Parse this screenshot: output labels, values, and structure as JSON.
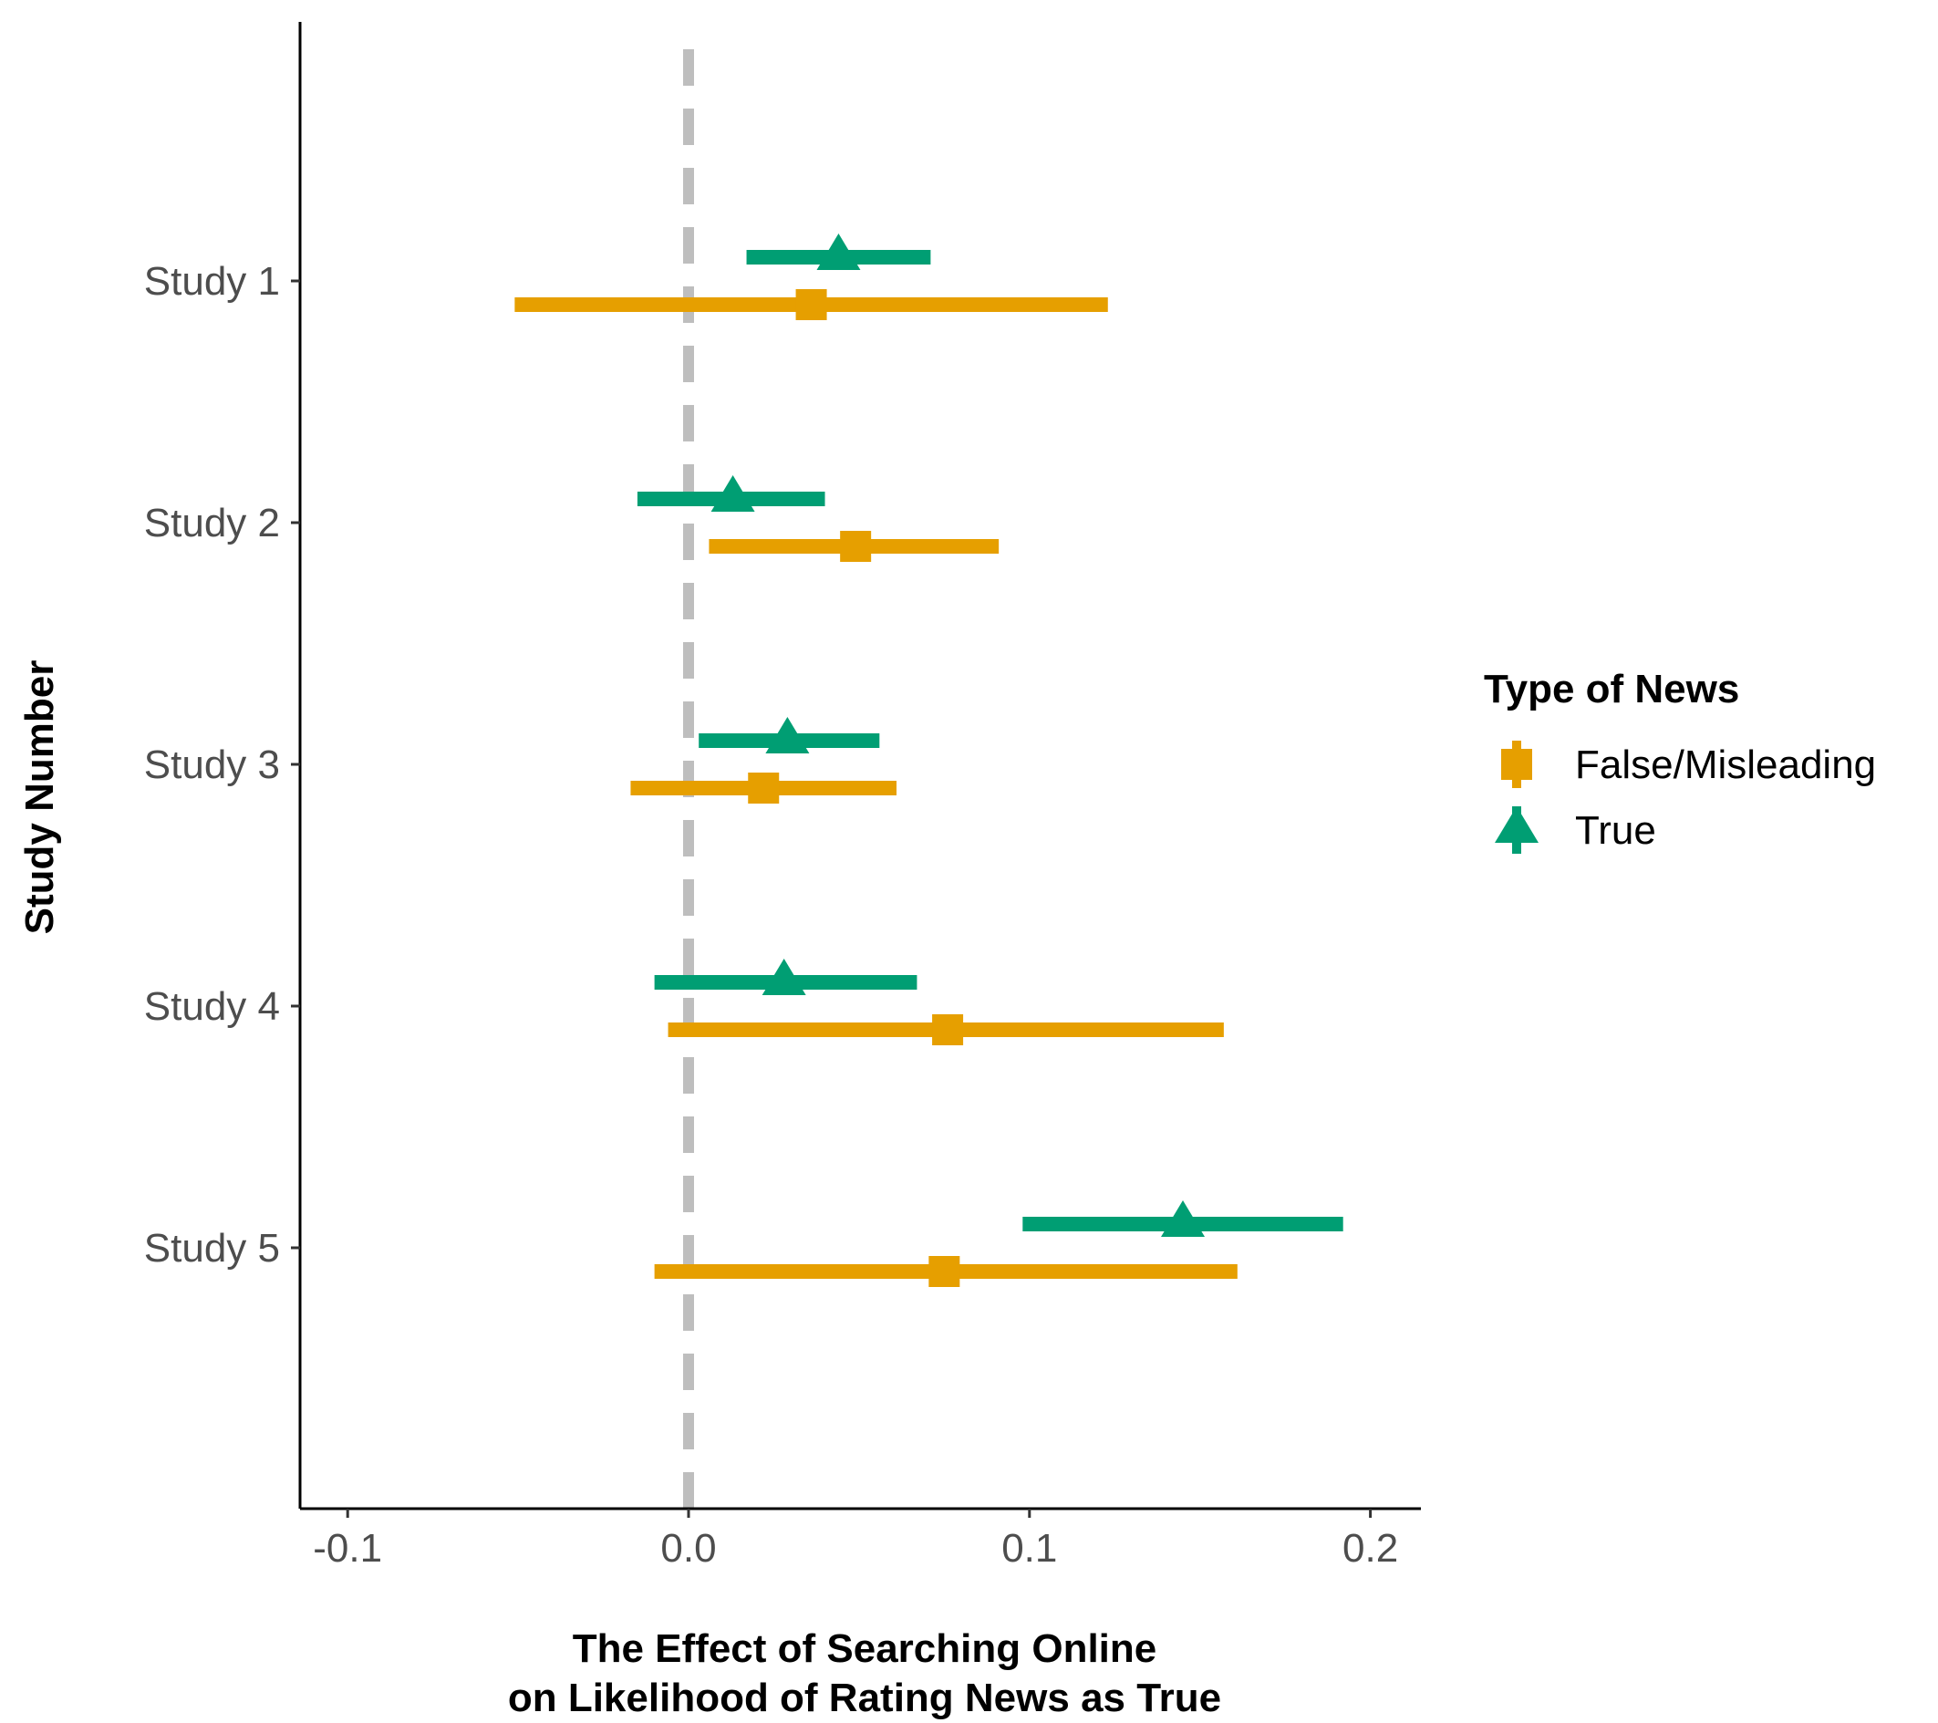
{
  "chart_data": {
    "type": "scatter",
    "subtype": "forest-plot-with-confidence-intervals",
    "title": "",
    "xlabel_lines": [
      "The Effect of Searching Online",
      "on Likelihood of Rating News as True"
    ],
    "ylabel": "Study Number",
    "categories": [
      "Study 1",
      "Study 2",
      "Study 3",
      "Study 4",
      "Study 5"
    ],
    "xlim": [
      -0.114,
      0.215
    ],
    "xticks": [
      -0.1,
      0.0,
      0.1,
      0.2
    ],
    "xtick_labels": [
      "-0.1",
      "0.0",
      "0.1",
      "0.2"
    ],
    "reference_line": {
      "x": 0.0,
      "style": "dashed",
      "color": "#bebebe"
    },
    "grid": false,
    "legend": {
      "title": "Type of News",
      "position": "right"
    },
    "series": [
      {
        "name": "False/Misleading",
        "marker": "square",
        "color": "#E69F00",
        "points": [
          {
            "category": "Study 1",
            "estimate": 0.036,
            "lower": -0.051,
            "upper": 0.123
          },
          {
            "category": "Study 2",
            "estimate": 0.049,
            "lower": 0.006,
            "upper": 0.091
          },
          {
            "category": "Study 3",
            "estimate": 0.022,
            "lower": -0.017,
            "upper": 0.061
          },
          {
            "category": "Study 4",
            "estimate": 0.076,
            "lower": -0.006,
            "upper": 0.157
          },
          {
            "category": "Study 5",
            "estimate": 0.075,
            "lower": -0.01,
            "upper": 0.161
          }
        ]
      },
      {
        "name": "True",
        "marker": "triangle",
        "color": "#009E73",
        "points": [
          {
            "category": "Study 1",
            "estimate": 0.044,
            "lower": 0.017,
            "upper": 0.071
          },
          {
            "category": "Study 2",
            "estimate": 0.013,
            "lower": -0.015,
            "upper": 0.04
          },
          {
            "category": "Study 3",
            "estimate": 0.029,
            "lower": 0.003,
            "upper": 0.056
          },
          {
            "category": "Study 4",
            "estimate": 0.028,
            "lower": -0.01,
            "upper": 0.067
          },
          {
            "category": "Study 5",
            "estimate": 0.145,
            "lower": 0.098,
            "upper": 0.192
          }
        ]
      }
    ]
  }
}
